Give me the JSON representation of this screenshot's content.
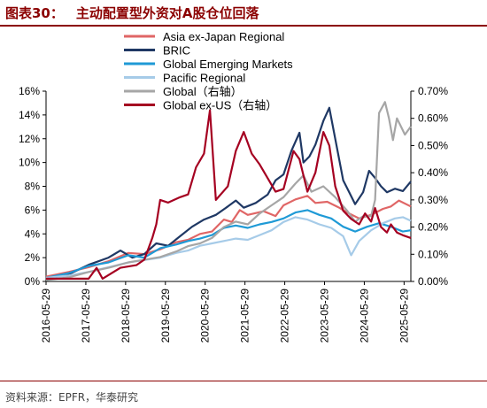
{
  "header": {
    "figure_label": "图表30：",
    "title": "主动配置型外资对A股仓位回落"
  },
  "footer": {
    "source": "资料来源：EPFR，华泰研究"
  },
  "chart_data": {
    "type": "line",
    "title": "主动配置型外资对A股仓位回落",
    "xlabel": "",
    "ylabel": "",
    "x_ticks": [
      "2016-05-29",
      "2017-05-29",
      "2018-05-29",
      "2019-05-29",
      "2020-05-29",
      "2021-05-29",
      "2022-05-29",
      "2023-05-29",
      "2024-05-29",
      "2025-05-29"
    ],
    "x_range": [
      2016.33,
      2025.5
    ],
    "y_left": {
      "ticks": [
        "0%",
        "2%",
        "4%",
        "6%",
        "8%",
        "10%",
        "12%",
        "14%",
        "16%"
      ],
      "range": [
        0,
        16
      ]
    },
    "y_right": {
      "ticks": [
        "0.00%",
        "0.10%",
        "0.20%",
        "0.30%",
        "0.40%",
        "0.50%",
        "0.60%",
        "0.70%"
      ],
      "range": [
        0,
        0.7
      ],
      "label": "右轴"
    },
    "grid": false,
    "legend_position": "top-center",
    "series": [
      {
        "name": "Asia ex-Japan Regional",
        "axis": "left",
        "color": "#e06666",
        "points": [
          [
            2016.33,
            0.4
          ],
          [
            2016.9,
            0.8
          ],
          [
            2017.4,
            1.2
          ],
          [
            2017.9,
            1.7
          ],
          [
            2018.4,
            2.4
          ],
          [
            2018.8,
            2.3
          ],
          [
            2019.2,
            2.7
          ],
          [
            2019.6,
            3.3
          ],
          [
            2019.9,
            3.5
          ],
          [
            2020.2,
            4.0
          ],
          [
            2020.5,
            4.2
          ],
          [
            2020.8,
            5.2
          ],
          [
            2021.0,
            5.0
          ],
          [
            2021.2,
            6.0
          ],
          [
            2021.4,
            5.6
          ],
          [
            2021.8,
            5.9
          ],
          [
            2022.1,
            5.5
          ],
          [
            2022.3,
            6.4
          ],
          [
            2022.6,
            6.9
          ],
          [
            2022.9,
            7.2
          ],
          [
            2023.1,
            6.6
          ],
          [
            2023.4,
            6.7
          ],
          [
            2023.7,
            6.2
          ],
          [
            2023.9,
            5.8
          ],
          [
            2024.2,
            5.3
          ],
          [
            2024.5,
            5.6
          ],
          [
            2024.8,
            6.1
          ],
          [
            2025.0,
            6.3
          ],
          [
            2025.2,
            6.8
          ],
          [
            2025.5,
            6.3
          ]
        ]
      },
      {
        "name": "BRIC",
        "axis": "left",
        "color": "#1f3864",
        "points": [
          [
            2016.33,
            0.2
          ],
          [
            2016.9,
            0.6
          ],
          [
            2017.4,
            1.4
          ],
          [
            2017.9,
            2.0
          ],
          [
            2018.2,
            2.6
          ],
          [
            2018.5,
            2.0
          ],
          [
            2018.8,
            2.3
          ],
          [
            2019.1,
            3.2
          ],
          [
            2019.4,
            3.0
          ],
          [
            2019.7,
            3.8
          ],
          [
            2020.0,
            4.6
          ],
          [
            2020.3,
            5.2
          ],
          [
            2020.6,
            5.6
          ],
          [
            2020.9,
            6.3
          ],
          [
            2021.1,
            6.8
          ],
          [
            2021.3,
            6.2
          ],
          [
            2021.6,
            6.6
          ],
          [
            2021.9,
            7.3
          ],
          [
            2022.1,
            8.5
          ],
          [
            2022.3,
            9.0
          ],
          [
            2022.5,
            11.0
          ],
          [
            2022.7,
            12.5
          ],
          [
            2022.8,
            10.0
          ],
          [
            2022.95,
            10.5
          ],
          [
            2023.1,
            11.5
          ],
          [
            2023.3,
            13.5
          ],
          [
            2023.45,
            14.6
          ],
          [
            2023.6,
            12.0
          ],
          [
            2023.8,
            8.5
          ],
          [
            2023.95,
            7.5
          ],
          [
            2024.1,
            6.5
          ],
          [
            2024.3,
            7.5
          ],
          [
            2024.45,
            9.3
          ],
          [
            2024.6,
            8.7
          ],
          [
            2024.75,
            8.0
          ],
          [
            2024.9,
            7.5
          ],
          [
            2025.1,
            7.8
          ],
          [
            2025.3,
            7.6
          ],
          [
            2025.5,
            8.4
          ]
        ]
      },
      {
        "name": "Global Emerging Markets",
        "axis": "left",
        "color": "#1f9ad6",
        "points": [
          [
            2016.33,
            0.3
          ],
          [
            2016.9,
            0.7
          ],
          [
            2017.4,
            1.3
          ],
          [
            2017.9,
            1.6
          ],
          [
            2018.4,
            2.2
          ],
          [
            2018.8,
            2.0
          ],
          [
            2019.2,
            2.8
          ],
          [
            2019.6,
            3.1
          ],
          [
            2019.9,
            3.4
          ],
          [
            2020.2,
            3.6
          ],
          [
            2020.5,
            3.9
          ],
          [
            2020.8,
            4.5
          ],
          [
            2021.1,
            4.7
          ],
          [
            2021.4,
            4.5
          ],
          [
            2021.7,
            4.8
          ],
          [
            2022.0,
            5.0
          ],
          [
            2022.3,
            5.3
          ],
          [
            2022.6,
            5.8
          ],
          [
            2022.9,
            6.0
          ],
          [
            2023.2,
            5.6
          ],
          [
            2023.5,
            5.3
          ],
          [
            2023.8,
            4.6
          ],
          [
            2024.1,
            4.2
          ],
          [
            2024.4,
            4.6
          ],
          [
            2024.7,
            4.9
          ],
          [
            2025.0,
            4.6
          ],
          [
            2025.3,
            4.2
          ],
          [
            2025.5,
            4.3
          ]
        ]
      },
      {
        "name": "Pacific Regional",
        "axis": "left",
        "color": "#a6cbe8",
        "points": [
          [
            2016.33,
            0.3
          ],
          [
            2016.9,
            0.5
          ],
          [
            2017.4,
            0.8
          ],
          [
            2017.9,
            1.2
          ],
          [
            2018.4,
            1.6
          ],
          [
            2018.8,
            1.8
          ],
          [
            2019.2,
            2.0
          ],
          [
            2019.6,
            2.4
          ],
          [
            2019.9,
            2.6
          ],
          [
            2020.2,
            3.0
          ],
          [
            2020.5,
            3.2
          ],
          [
            2020.8,
            3.4
          ],
          [
            2021.1,
            3.6
          ],
          [
            2021.4,
            3.5
          ],
          [
            2021.7,
            3.9
          ],
          [
            2022.0,
            4.3
          ],
          [
            2022.3,
            5.0
          ],
          [
            2022.6,
            5.4
          ],
          [
            2022.9,
            5.2
          ],
          [
            2023.2,
            4.8
          ],
          [
            2023.5,
            4.5
          ],
          [
            2023.8,
            3.8
          ],
          [
            2024.0,
            2.2
          ],
          [
            2024.2,
            3.4
          ],
          [
            2024.5,
            4.3
          ],
          [
            2024.8,
            4.9
          ],
          [
            2025.1,
            5.3
          ],
          [
            2025.3,
            5.4
          ],
          [
            2025.5,
            5.1
          ]
        ]
      },
      {
        "name": "Global（右轴）",
        "axis": "right",
        "color": "#a6a6a6",
        "points": [
          [
            2016.33,
            0.005
          ],
          [
            2016.9,
            0.015
          ],
          [
            2017.4,
            0.035
          ],
          [
            2017.9,
            0.05
          ],
          [
            2018.4,
            0.07
          ],
          [
            2018.8,
            0.08
          ],
          [
            2019.2,
            0.09
          ],
          [
            2019.6,
            0.11
          ],
          [
            2019.9,
            0.13
          ],
          [
            2020.2,
            0.14
          ],
          [
            2020.5,
            0.16
          ],
          [
            2020.8,
            0.2
          ],
          [
            2021.1,
            0.22
          ],
          [
            2021.4,
            0.21
          ],
          [
            2021.7,
            0.25
          ],
          [
            2022.0,
            0.28
          ],
          [
            2022.3,
            0.31
          ],
          [
            2022.6,
            0.36
          ],
          [
            2022.8,
            0.39
          ],
          [
            2023.0,
            0.33
          ],
          [
            2023.3,
            0.35
          ],
          [
            2023.6,
            0.31
          ],
          [
            2023.9,
            0.26
          ],
          [
            2024.1,
            0.22
          ],
          [
            2024.3,
            0.24
          ],
          [
            2024.5,
            0.24
          ],
          [
            2024.6,
            0.3
          ],
          [
            2024.7,
            0.62
          ],
          [
            2024.85,
            0.66
          ],
          [
            2024.95,
            0.6
          ],
          [
            2025.05,
            0.52
          ],
          [
            2025.15,
            0.6
          ],
          [
            2025.25,
            0.57
          ],
          [
            2025.35,
            0.54
          ],
          [
            2025.5,
            0.57
          ]
        ]
      },
      {
        "name": "Global ex-US（右轴）",
        "axis": "right",
        "color": "#a50021",
        "points": [
          [
            2016.33,
            0.01
          ],
          [
            2016.9,
            0.01
          ],
          [
            2017.4,
            0.01
          ],
          [
            2017.6,
            0.05
          ],
          [
            2017.75,
            0.01
          ],
          [
            2018.2,
            0.05
          ],
          [
            2018.6,
            0.06
          ],
          [
            2018.8,
            0.08
          ],
          [
            2019.0,
            0.16
          ],
          [
            2019.1,
            0.21
          ],
          [
            2019.2,
            0.3
          ],
          [
            2019.4,
            0.29
          ],
          [
            2019.7,
            0.31
          ],
          [
            2019.9,
            0.32
          ],
          [
            2020.1,
            0.42
          ],
          [
            2020.3,
            0.47
          ],
          [
            2020.45,
            0.63
          ],
          [
            2020.6,
            0.3
          ],
          [
            2020.9,
            0.35
          ],
          [
            2021.1,
            0.48
          ],
          [
            2021.3,
            0.55
          ],
          [
            2021.5,
            0.47
          ],
          [
            2021.7,
            0.43
          ],
          [
            2021.9,
            0.38
          ],
          [
            2022.1,
            0.33
          ],
          [
            2022.3,
            0.34
          ],
          [
            2022.55,
            0.48
          ],
          [
            2022.7,
            0.45
          ],
          [
            2022.9,
            0.33
          ],
          [
            2023.1,
            0.4
          ],
          [
            2023.3,
            0.55
          ],
          [
            2023.45,
            0.5
          ],
          [
            2023.6,
            0.35
          ],
          [
            2023.8,
            0.26
          ],
          [
            2024.0,
            0.23
          ],
          [
            2024.2,
            0.21
          ],
          [
            2024.35,
            0.25
          ],
          [
            2024.5,
            0.22
          ],
          [
            2024.6,
            0.27
          ],
          [
            2024.75,
            0.2
          ],
          [
            2024.9,
            0.18
          ],
          [
            2025.0,
            0.21
          ],
          [
            2025.15,
            0.18
          ],
          [
            2025.3,
            0.17
          ],
          [
            2025.5,
            0.16
          ]
        ]
      }
    ]
  }
}
